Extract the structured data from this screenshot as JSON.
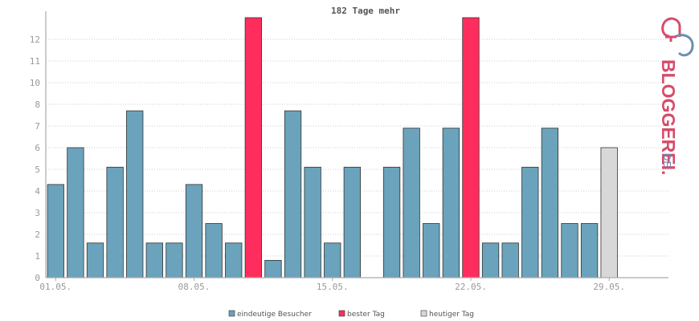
{
  "chart_data": {
    "type": "bar",
    "title": "182 Tage mehr",
    "ylim": [
      0,
      12
    ],
    "yticks": [
      "0",
      "1",
      "2",
      "3",
      "4",
      "5",
      "6",
      "7",
      "8",
      "10",
      "11",
      "12"
    ],
    "x_tick_labels": [
      {
        "day": 1,
        "label": "01.05."
      },
      {
        "day": 8,
        "label": "08.05."
      },
      {
        "day": 15,
        "label": "15.05."
      },
      {
        "day": 22,
        "label": "22.05."
      },
      {
        "day": 29,
        "label": "29.05."
      }
    ],
    "days": [
      1,
      2,
      3,
      4,
      5,
      6,
      7,
      8,
      9,
      10,
      11,
      12,
      13,
      14,
      15,
      16,
      17,
      18,
      19,
      20,
      21,
      22,
      23,
      24,
      25,
      26,
      27,
      28,
      29,
      30,
      31
    ],
    "values": [
      4.3,
      6,
      1.6,
      5.1,
      7.7,
      1.6,
      1.6,
      4.3,
      2.5,
      1.6,
      12,
      0.8,
      7.7,
      5.1,
      1.6,
      5.1,
      0,
      5.1,
      6.9,
      2.5,
      6.9,
      12,
      1.6,
      1.6,
      5.1,
      6.9,
      2.5,
      2.5,
      6,
      0,
      0
    ],
    "bar_type": [
      "visitor",
      "visitor",
      "visitor",
      "visitor",
      "visitor",
      "visitor",
      "visitor",
      "visitor",
      "visitor",
      "visitor",
      "best",
      "visitor",
      "visitor",
      "visitor",
      "visitor",
      "visitor",
      "visitor",
      "visitor",
      "visitor",
      "visitor",
      "visitor",
      "best",
      "visitor",
      "visitor",
      "visitor",
      "visitor",
      "visitor",
      "visitor",
      "today",
      "visitor",
      "visitor"
    ],
    "series": [
      {
        "name": "eindeutige Besucher",
        "key": "visitor",
        "color": "#6aa3bb"
      },
      {
        "name": "bester Tag",
        "key": "best",
        "color": "#ff2d5d"
      },
      {
        "name": "heutiger Tag",
        "key": "today",
        "color": "#d8d8d8"
      }
    ],
    "grid": true,
    "legend_position": "bottom"
  },
  "logo": {
    "text": "BLOGGEREI.",
    "suffix": "DE"
  },
  "colors": {
    "axis": "#aaaaaa",
    "grid": "#cccccc",
    "bar_stroke": "#333333",
    "logo_pink": "#d74b6b",
    "logo_blue": "#6a8fb0"
  }
}
